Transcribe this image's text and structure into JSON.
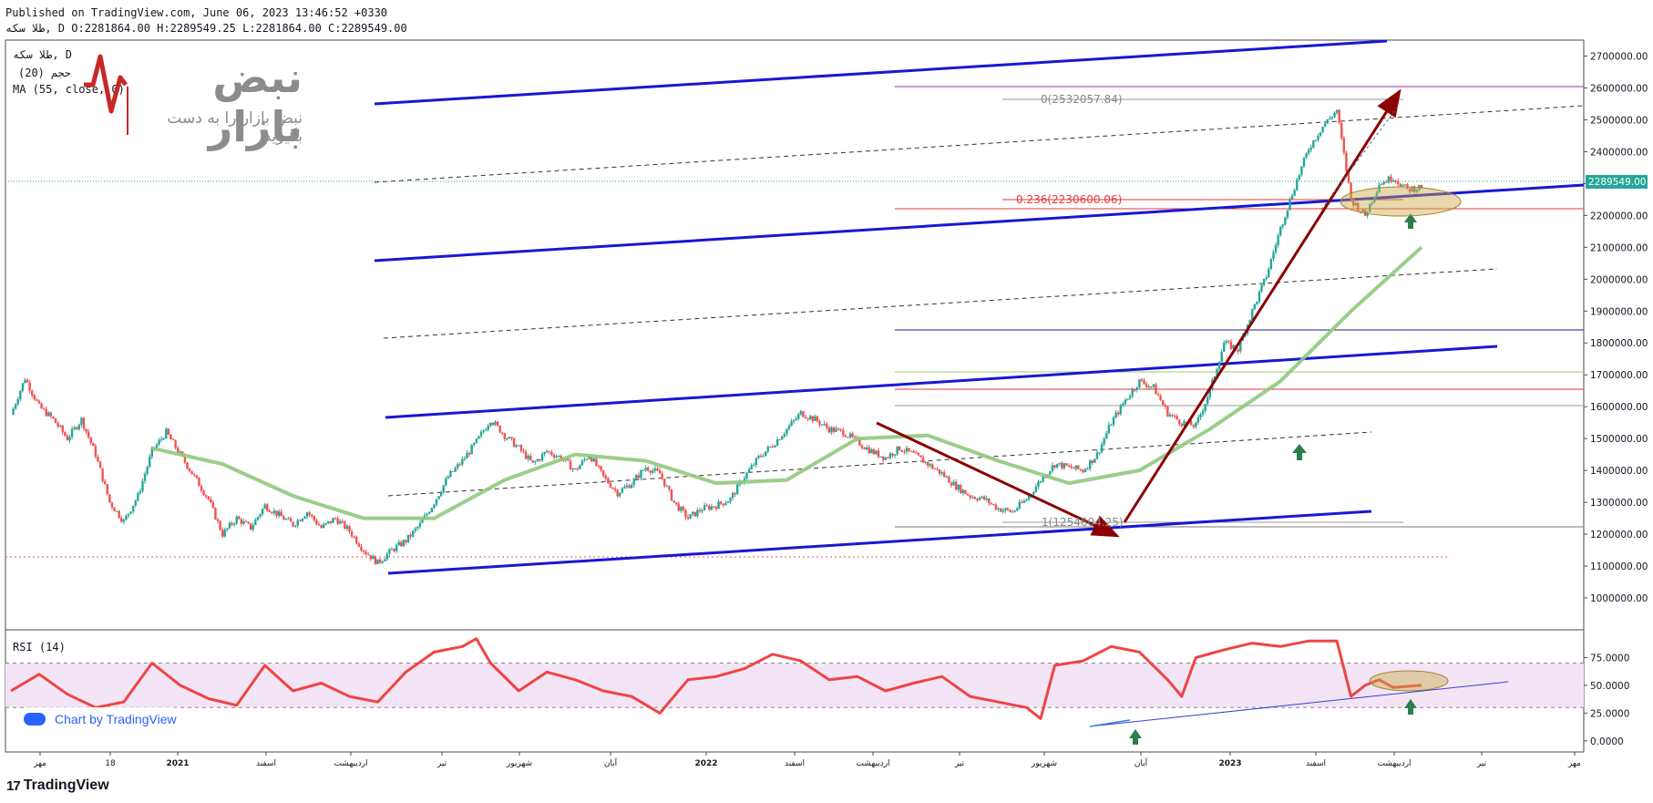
{
  "header": {
    "publish": "Published on TradingView.com, June 06, 2023 13:46:52 +0330",
    "ohlc": "طلا سکه, D O:2281864.00 H:2289549.25 L:2281864.00 C:2289549.00"
  },
  "legend": {
    "symbol": "طلا سکه, D",
    "vol": "(20) حجم",
    "ma": "MA (55, close, 0)"
  },
  "watermark": {
    "name": "نبض بازار",
    "tagline": "نبض بازار را به دست بگیرید"
  },
  "credit": "Chart by TradingView",
  "footer_logo": "TradingView",
  "colors": {
    "bull": "#26a69a",
    "bear": "#ef5350",
    "ma": "#8fc97d",
    "channel": "#1717d6",
    "arrow": "#8b0000",
    "rsi": "#ef4444",
    "rsi_band": "#f3e5f5",
    "last_price_bg": "#26a69a",
    "ellipse": "#c9a94a"
  },
  "chart_data": [
    {
      "type": "candlestick",
      "title": "طلا سکه, D",
      "ylim": [
        900000,
        2750000
      ],
      "y_ticks": [
        "2700000.00",
        "2600000.00",
        "2500000.00",
        "2400000.00",
        "2300000.00",
        "2200000.00",
        "2100000.00",
        "2000000.00",
        "1900000.00",
        "1800000.00",
        "1700000.00",
        "1600000.00",
        "1500000.00",
        "1400000.00",
        "1300000.00",
        "1200000.00",
        "1100000.00",
        "1000000.00"
      ],
      "x_ticks": [
        "مهر",
        "18",
        "2021",
        "اسفند",
        "اردیبهشت",
        "تیر",
        "شهریور",
        "آبان",
        "2022",
        "اسفند",
        "اردیبهشت",
        "تیر",
        "شهریور",
        "آبان",
        "2023",
        "اسفند",
        "اردیبهشت",
        "تیر",
        "مهر"
      ],
      "last_price": "2289549.00",
      "close_path": [
        [
          0,
          1575000
        ],
        [
          3,
          1690000
        ],
        [
          6,
          1600000
        ],
        [
          9,
          1560000
        ],
        [
          12,
          1500000
        ],
        [
          15,
          1560000
        ],
        [
          18,
          1450000
        ],
        [
          21,
          1300000
        ],
        [
          24,
          1240000
        ],
        [
          27,
          1320000
        ],
        [
          30,
          1460000
        ],
        [
          33,
          1520000
        ],
        [
          36,
          1450000
        ],
        [
          39,
          1380000
        ],
        [
          42,
          1310000
        ],
        [
          45,
          1200000
        ],
        [
          48,
          1250000
        ],
        [
          51,
          1220000
        ],
        [
          54,
          1290000
        ],
        [
          57,
          1260000
        ],
        [
          60,
          1230000
        ],
        [
          63,
          1270000
        ],
        [
          66,
          1220000
        ],
        [
          69,
          1250000
        ],
        [
          72,
          1210000
        ],
        [
          75,
          1150000
        ],
        [
          78,
          1110000
        ],
        [
          81,
          1150000
        ],
        [
          84,
          1180000
        ],
        [
          87,
          1230000
        ],
        [
          90,
          1300000
        ],
        [
          93,
          1380000
        ],
        [
          96,
          1430000
        ],
        [
          99,
          1490000
        ],
        [
          102,
          1560000
        ],
        [
          105,
          1510000
        ],
        [
          108,
          1470000
        ],
        [
          111,
          1420000
        ],
        [
          114,
          1460000
        ],
        [
          117,
          1440000
        ],
        [
          120,
          1400000
        ],
        [
          123,
          1450000
        ],
        [
          126,
          1380000
        ],
        [
          129,
          1330000
        ],
        [
          132,
          1360000
        ],
        [
          135,
          1410000
        ],
        [
          138,
          1390000
        ],
        [
          141,
          1300000
        ],
        [
          144,
          1250000
        ],
        [
          147,
          1280000
        ],
        [
          150,
          1290000
        ],
        [
          153,
          1310000
        ],
        [
          156,
          1380000
        ],
        [
          159,
          1440000
        ],
        [
          162,
          1480000
        ],
        [
          165,
          1530000
        ],
        [
          168,
          1580000
        ],
        [
          171,
          1560000
        ],
        [
          174,
          1530000
        ],
        [
          177,
          1520000
        ],
        [
          180,
          1490000
        ],
        [
          183,
          1460000
        ],
        [
          186,
          1440000
        ],
        [
          189,
          1470000
        ],
        [
          192,
          1450000
        ],
        [
          195,
          1420000
        ],
        [
          198,
          1390000
        ],
        [
          201,
          1350000
        ],
        [
          204,
          1320000
        ],
        [
          207,
          1310000
        ],
        [
          210,
          1280000
        ],
        [
          213,
          1270000
        ],
        [
          216,
          1310000
        ],
        [
          219,
          1370000
        ],
        [
          222,
          1420000
        ],
        [
          225,
          1410000
        ],
        [
          228,
          1400000
        ],
        [
          231,
          1450000
        ],
        [
          234,
          1550000
        ],
        [
          237,
          1620000
        ],
        [
          240,
          1680000
        ],
        [
          243,
          1660000
        ],
        [
          246,
          1580000
        ],
        [
          249,
          1550000
        ],
        [
          252,
          1540000
        ],
        [
          255,
          1650000
        ],
        [
          258,
          1800000
        ],
        [
          261,
          1780000
        ],
        [
          264,
          1900000
        ],
        [
          267,
          2010000
        ],
        [
          270,
          2160000
        ],
        [
          273,
          2290000
        ],
        [
          276,
          2410000
        ],
        [
          279,
          2480000
        ],
        [
          282,
          2530000
        ],
        [
          285,
          2250000
        ],
        [
          288,
          2200000
        ],
        [
          291,
          2300000
        ],
        [
          294,
          2320000
        ],
        [
          297,
          2280000
        ],
        [
          300,
          2290000
        ]
      ],
      "ma_path": [
        [
          30,
          1470000
        ],
        [
          45,
          1420000
        ],
        [
          60,
          1320000
        ],
        [
          75,
          1250000
        ],
        [
          90,
          1250000
        ],
        [
          105,
          1370000
        ],
        [
          120,
          1450000
        ],
        [
          135,
          1430000
        ],
        [
          150,
          1360000
        ],
        [
          165,
          1370000
        ],
        [
          180,
          1500000
        ],
        [
          195,
          1510000
        ],
        [
          210,
          1430000
        ],
        [
          225,
          1360000
        ],
        [
          240,
          1400000
        ],
        [
          255,
          1530000
        ],
        [
          270,
          1680000
        ],
        [
          285,
          1900000
        ],
        [
          300,
          2100000
        ]
      ],
      "x_domain": [
        0,
        300
      ],
      "fib_levels": [
        {
          "label": "0(2532057.84)",
          "value": 2532057.84
        },
        {
          "label": "0.236(2230600.06)",
          "value": 2230600.06
        },
        {
          "label": "1(1254604.25)",
          "value": 1254604.25
        }
      ]
    },
    {
      "type": "line",
      "title": "RSI (14)",
      "ylim": [
        -10,
        100
      ],
      "y_ticks": [
        "75.0000",
        "50.0000",
        "25.0000",
        "0.0000"
      ],
      "band": [
        30,
        70
      ],
      "values_path": [
        [
          0,
          45
        ],
        [
          6,
          60
        ],
        [
          12,
          42
        ],
        [
          18,
          30
        ],
        [
          24,
          35
        ],
        [
          30,
          70
        ],
        [
          36,
          50
        ],
        [
          42,
          38
        ],
        [
          48,
          32
        ],
        [
          54,
          68
        ],
        [
          60,
          45
        ],
        [
          66,
          52
        ],
        [
          72,
          40
        ],
        [
          78,
          35
        ],
        [
          84,
          62
        ],
        [
          90,
          80
        ],
        [
          96,
          85
        ],
        [
          99,
          92
        ],
        [
          102,
          70
        ],
        [
          108,
          45
        ],
        [
          114,
          62
        ],
        [
          120,
          55
        ],
        [
          126,
          45
        ],
        [
          132,
          40
        ],
        [
          138,
          25
        ],
        [
          144,
          55
        ],
        [
          150,
          58
        ],
        [
          156,
          65
        ],
        [
          162,
          78
        ],
        [
          168,
          72
        ],
        [
          174,
          55
        ],
        [
          180,
          58
        ],
        [
          186,
          45
        ],
        [
          192,
          52
        ],
        [
          198,
          58
        ],
        [
          204,
          40
        ],
        [
          210,
          35
        ],
        [
          216,
          30
        ],
        [
          219,
          20
        ],
        [
          222,
          68
        ],
        [
          228,
          72
        ],
        [
          234,
          85
        ],
        [
          240,
          80
        ],
        [
          246,
          55
        ],
        [
          249,
          40
        ],
        [
          252,
          75
        ],
        [
          258,
          82
        ],
        [
          264,
          88
        ],
        [
          270,
          85
        ],
        [
          276,
          90
        ],
        [
          282,
          90
        ],
        [
          285,
          40
        ],
        [
          288,
          50
        ],
        [
          291,
          55
        ],
        [
          294,
          48
        ],
        [
          300,
          50
        ]
      ]
    }
  ]
}
